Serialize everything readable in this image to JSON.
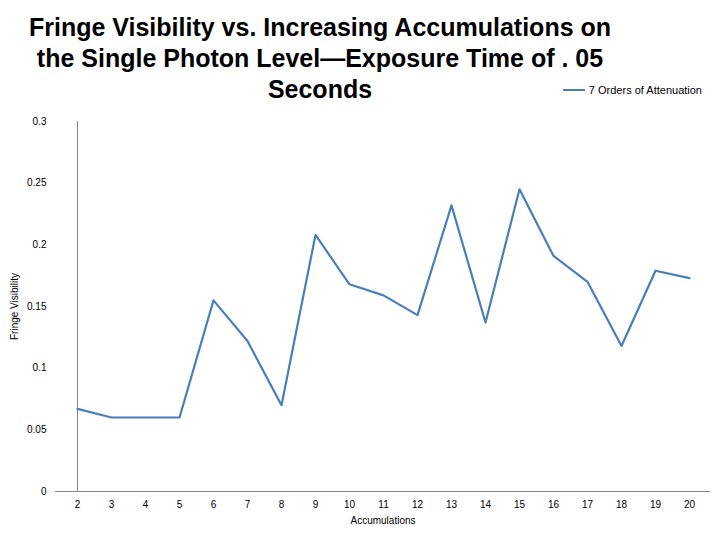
{
  "chart_data": {
    "type": "line",
    "title": "Fringe Visibility vs. Increasing Accumulations on the Single Photon Level—Exposure Time of . 05 Seconds",
    "x_label": "Accumulations",
    "y_label": "Fringe Visibility",
    "categories": [
      "2",
      "3",
      "4",
      "5",
      "6",
      "7",
      "8",
      "9",
      "10",
      "11",
      "12",
      "13",
      "14",
      "15",
      "16",
      "17",
      "18",
      "19",
      "20"
    ],
    "series": [
      {
        "name": "7 Orders of Attenuation",
        "color": "#4a7ebb",
        "values": [
          0.067,
          0.06,
          0.06,
          0.06,
          0.155,
          0.122,
          0.07,
          0.208,
          0.168,
          0.159,
          0.143,
          0.232,
          0.137,
          0.245,
          0.191,
          0.17,
          0.118,
          0.179,
          0.173
        ]
      }
    ],
    "ylim": [
      0,
      0.3
    ],
    "yticks": [
      0,
      0.05,
      0.1,
      0.15,
      0.2,
      0.25,
      0.3
    ],
    "grid": false,
    "legend": "top-right"
  }
}
